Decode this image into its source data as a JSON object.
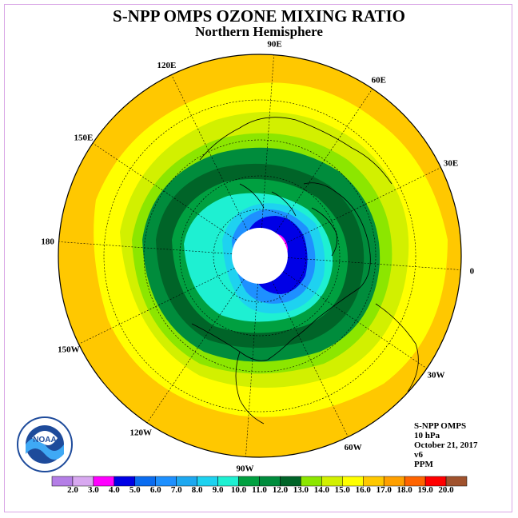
{
  "title": "S-NPP OMPS OZONE MIXING RATIO",
  "subtitle": "Northern Hemisphere",
  "info": {
    "instrument": "S-NPP OMPS",
    "level": "10 hPa",
    "date": "October 21, 2017",
    "version": "v6",
    "units": "PPM"
  },
  "logo_text": "NOAA",
  "longitude_labels": [
    {
      "text": "90E",
      "deg": 90
    },
    {
      "text": "60E",
      "deg": 60
    },
    {
      "text": "30E",
      "deg": 30
    },
    {
      "text": "0",
      "deg": 0
    },
    {
      "text": "30W",
      "deg": -30
    },
    {
      "text": "60W",
      "deg": -60
    },
    {
      "text": "90W",
      "deg": -90
    },
    {
      "text": "120W",
      "deg": -120
    },
    {
      "text": "150W",
      "deg": -150
    },
    {
      "text": "180",
      "deg": 180
    },
    {
      "text": "150E",
      "deg": 150
    },
    {
      "text": "120E",
      "deg": 120
    }
  ],
  "colorbar": {
    "labels": [
      "2.0",
      "3.0",
      "4.0",
      "5.0",
      "6.0",
      "7.0",
      "8.0",
      "9.0",
      "10.0",
      "11.0",
      "12.0",
      "13.0",
      "14.0",
      "15.0",
      "16.0",
      "17.0",
      "18.0",
      "19.0",
      "20.0"
    ],
    "colors": [
      "#b47ee6",
      "#d8a8f0",
      "#ff00ff",
      "#0000e6",
      "#0a6cf0",
      "#1e90ff",
      "#1ea8f0",
      "#1ed2f0",
      "#1ef0d2",
      "#00a040",
      "#008c3c",
      "#006428",
      "#8ce600",
      "#d2f000",
      "#ffff00",
      "#ffc800",
      "#ffa000",
      "#ff6400",
      "#ff0000",
      "#a0522d"
    ]
  }
}
